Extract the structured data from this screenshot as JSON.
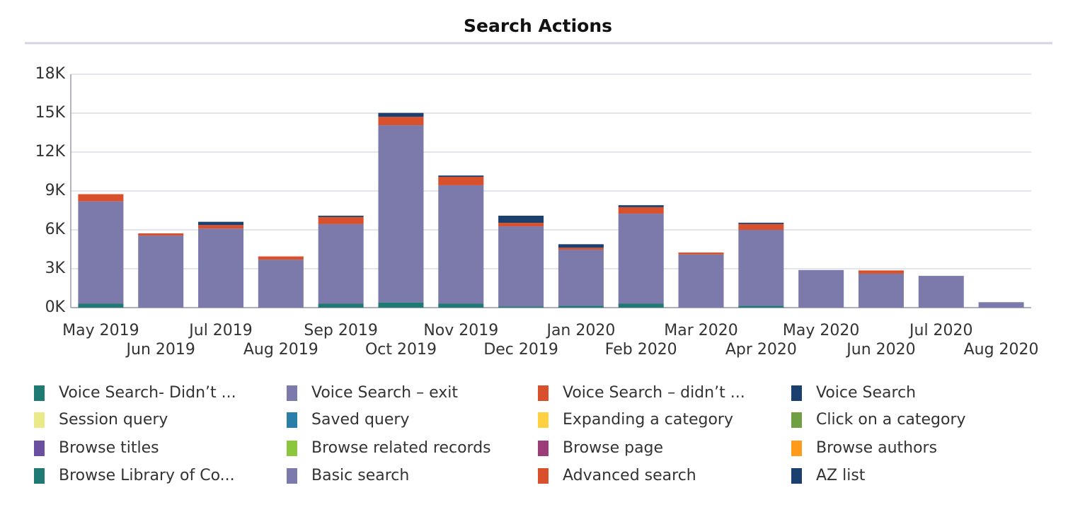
{
  "chart_data": {
    "type": "bar",
    "stacked": true,
    "title": "Search Actions",
    "categories": [
      "May 2019",
      "Jun 2019",
      "Jul 2019",
      "Aug 2019",
      "Sep 2019",
      "Oct 2019",
      "Nov 2019",
      "Dec 2019",
      "Jan 2020",
      "Feb 2020",
      "Mar 2020",
      "Apr 2020",
      "May 2020",
      "Jun 2020",
      "Jul 2020",
      "Aug 2020"
    ],
    "ylim": [
      0,
      18000
    ],
    "yticks": [
      {
        "value": 0,
        "label": "0K"
      },
      {
        "value": 3000,
        "label": "3K"
      },
      {
        "value": 6000,
        "label": "6K"
      },
      {
        "value": 9000,
        "label": "9K"
      },
      {
        "value": 12000,
        "label": "12K"
      },
      {
        "value": 15000,
        "label": "15K"
      },
      {
        "value": 18000,
        "label": "18K"
      }
    ],
    "grid": true,
    "series": [
      {
        "name": "Voice Search- Didn’t ...",
        "color": "#1f7a73",
        "values": [
          0,
          0,
          0,
          0,
          0,
          0,
          0,
          0,
          0,
          0,
          0,
          0,
          0,
          0,
          0,
          0
        ]
      },
      {
        "name": "Voice Search – exit",
        "color": "#7c7aaa",
        "values": [
          0,
          0,
          0,
          0,
          0,
          0,
          0,
          0,
          0,
          0,
          0,
          0,
          0,
          0,
          0,
          0
        ]
      },
      {
        "name": "Voice Search – didn’t ...",
        "color": "#d9512c",
        "values": [
          0,
          0,
          0,
          0,
          0,
          0,
          0,
          0,
          0,
          0,
          0,
          0,
          0,
          0,
          0,
          0
        ]
      },
      {
        "name": "Voice Search",
        "color": "#1b3f6e",
        "values": [
          0,
          0,
          0,
          0,
          0,
          0,
          0,
          0,
          0,
          0,
          0,
          0,
          0,
          0,
          0,
          0
        ]
      },
      {
        "name": "Session query",
        "color": "#eaea8a",
        "values": [
          0,
          0,
          0,
          0,
          0,
          0,
          0,
          0,
          0,
          0,
          0,
          0,
          0,
          0,
          0,
          0
        ]
      },
      {
        "name": "Saved query",
        "color": "#2a7fa8",
        "values": [
          0,
          0,
          0,
          0,
          0,
          0,
          0,
          0,
          0,
          0,
          0,
          0,
          0,
          0,
          0,
          0
        ]
      },
      {
        "name": "Expanding a category",
        "color": "#ffd040",
        "values": [
          0,
          0,
          0,
          0,
          0,
          0,
          0,
          0,
          0,
          0,
          0,
          0,
          0,
          0,
          0,
          0
        ]
      },
      {
        "name": "Click on a category",
        "color": "#6ea043",
        "values": [
          0,
          0,
          0,
          0,
          0,
          0,
          0,
          0,
          0,
          0,
          0,
          0,
          0,
          0,
          0,
          0
        ]
      },
      {
        "name": "Browse titles",
        "color": "#6a4fa0",
        "values": [
          0,
          0,
          0,
          0,
          0,
          0,
          0,
          0,
          0,
          0,
          0,
          0,
          0,
          0,
          0,
          0
        ]
      },
      {
        "name": "Browse related records",
        "color": "#8cc63f",
        "values": [
          0,
          0,
          0,
          0,
          0,
          0,
          0,
          0,
          0,
          0,
          0,
          0,
          0,
          0,
          0,
          0
        ]
      },
      {
        "name": "Browse page",
        "color": "#9c3d7a",
        "values": [
          0,
          0,
          0,
          0,
          0,
          0,
          0,
          0,
          0,
          0,
          0,
          0,
          0,
          0,
          0,
          0
        ]
      },
      {
        "name": "Browse authors",
        "color": "#ff9a1a",
        "values": [
          0,
          0,
          0,
          0,
          0,
          0,
          0,
          0,
          0,
          0,
          0,
          0,
          0,
          0,
          0,
          0
        ]
      },
      {
        "name": "Browse Library of Co...",
        "color": "#1f7a73",
        "values": [
          300,
          0,
          0,
          0,
          300,
          400,
          300,
          100,
          150,
          300,
          0,
          150,
          0,
          0,
          0,
          0
        ]
      },
      {
        "name": "Basic search",
        "color": "#7c7aaa",
        "values": [
          7900,
          5560,
          6100,
          3700,
          6140,
          13670,
          9140,
          6170,
          4320,
          6950,
          4100,
          5850,
          2900,
          2620,
          2450,
          420
        ]
      },
      {
        "name": "Advanced search",
        "color": "#d9512c",
        "values": [
          550,
          170,
          270,
          250,
          550,
          650,
          650,
          270,
          150,
          500,
          150,
          450,
          0,
          250,
          0,
          0
        ]
      },
      {
        "name": "AZ list",
        "color": "#1b3f6e",
        "values": [
          0,
          0,
          250,
          0,
          100,
          300,
          100,
          550,
          270,
          150,
          0,
          100,
          0,
          0,
          0,
          0
        ]
      }
    ]
  }
}
